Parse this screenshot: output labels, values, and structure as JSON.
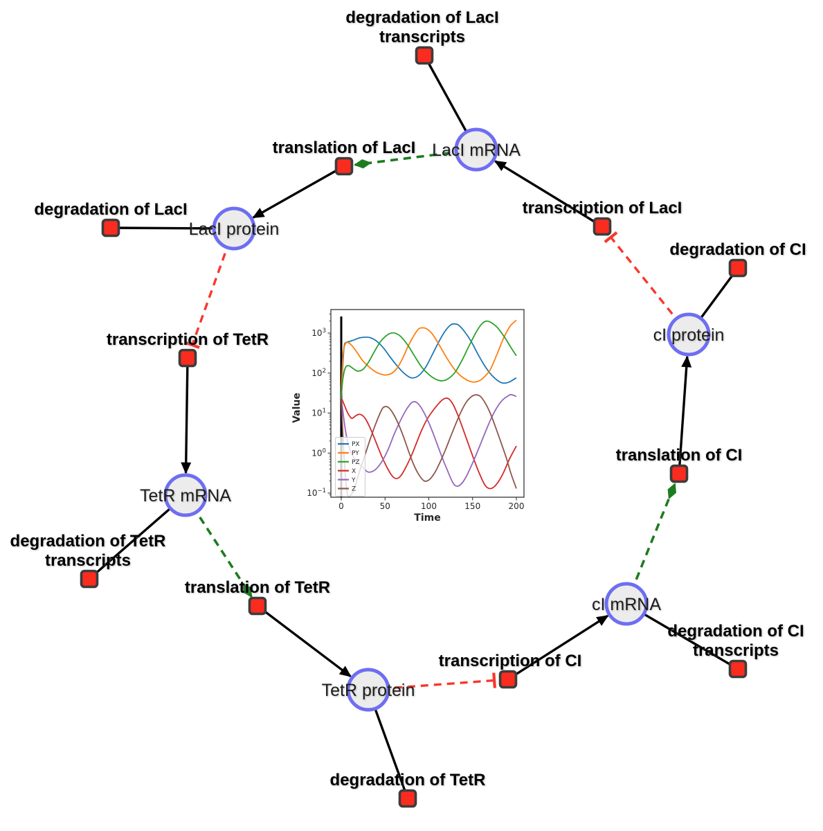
{
  "colors": {
    "activation": "#1d7c1f",
    "inhibition": "#f8372c",
    "node_fill": "#ececec",
    "node_border": "#6e6ef2",
    "reaction_fill": "#fa2b1f",
    "reaction_border": "#3c3c3c",
    "edge": "#000000"
  },
  "network": {
    "species": [
      {
        "id": "laci-mrna",
        "label": "LacI mRNA"
      },
      {
        "id": "laci-protein",
        "label": "LacI protein"
      },
      {
        "id": "tetr-mrna",
        "label": "TetR mRNA"
      },
      {
        "id": "tetr-protein",
        "label": "TetR protein"
      },
      {
        "id": "ci-mrna",
        "label": "cI mRNA"
      },
      {
        "id": "ci-protein",
        "label": "cI protein"
      }
    ],
    "reactions": [
      {
        "id": "degradation-laci-transcripts",
        "lines": [
          "degradation of LacI",
          "transcripts"
        ]
      },
      {
        "id": "translation-laci",
        "lines": [
          "translation of LacI"
        ]
      },
      {
        "id": "degradation-laci",
        "lines": [
          "degradation of LacI"
        ]
      },
      {
        "id": "transcription-laci",
        "lines": [
          "transcription of LacI"
        ]
      },
      {
        "id": "degradation-ci",
        "lines": [
          "degradation of CI"
        ]
      },
      {
        "id": "transcription-tetr",
        "lines": [
          "transcription of TetR"
        ]
      },
      {
        "id": "degradation-tetr-transcripts",
        "lines": [
          "degradation of TetR",
          "transcripts"
        ]
      },
      {
        "id": "translation-tetr",
        "lines": [
          "translation of TetR"
        ]
      },
      {
        "id": "degradation-tetr",
        "lines": [
          "degradation of TetR"
        ]
      },
      {
        "id": "transcription-ci",
        "lines": [
          "transcription of CI"
        ]
      },
      {
        "id": "degradation-ci-transcripts",
        "lines": [
          "degradation of CI",
          "transcripts"
        ]
      },
      {
        "id": "translation-ci",
        "lines": [
          "translation of CI"
        ]
      }
    ]
  },
  "chart_data": {
    "type": "line",
    "title": "",
    "xlabel": "Time",
    "ylabel": "Value",
    "xlim": [
      0,
      200
    ],
    "xticks": [
      0,
      50,
      100,
      150,
      200
    ],
    "yscale": "log",
    "ylim": [
      0.1,
      3800
    ],
    "yticks_decades": [
      -1,
      0,
      1,
      2,
      3
    ],
    "grid": false,
    "legend_position": "lower left",
    "vline_at_x": 0,
    "series": [
      {
        "name": "PX",
        "color": "#1f77b4",
        "points": [
          [
            0,
            25
          ],
          [
            3,
            400
          ],
          [
            6,
            580
          ],
          [
            10,
            620
          ],
          [
            15,
            680
          ],
          [
            21,
            760
          ],
          [
            27,
            790
          ],
          [
            33,
            770
          ],
          [
            40,
            640
          ],
          [
            48,
            430
          ],
          [
            56,
            250
          ],
          [
            64,
            150
          ],
          [
            72,
            98
          ],
          [
            80,
            76
          ],
          [
            88,
            85
          ],
          [
            96,
            135
          ],
          [
            104,
            290
          ],
          [
            112,
            640
          ],
          [
            119,
            1150
          ],
          [
            125,
            1600
          ],
          [
            129,
            1700
          ],
          [
            134,
            1580
          ],
          [
            140,
            1150
          ],
          [
            148,
            640
          ],
          [
            156,
            300
          ],
          [
            164,
            150
          ],
          [
            172,
            88
          ],
          [
            180,
            62
          ],
          [
            186,
            56
          ],
          [
            192,
            60
          ],
          [
            200,
            76
          ]
        ]
      },
      {
        "name": "PY",
        "color": "#ff7f0e",
        "points": [
          [
            0,
            25
          ],
          [
            2,
            280
          ],
          [
            5,
            560
          ],
          [
            8,
            575
          ],
          [
            12,
            490
          ],
          [
            18,
            330
          ],
          [
            24,
            210
          ],
          [
            30,
            155
          ],
          [
            36,
            120
          ],
          [
            42,
            100
          ],
          [
            48,
            91
          ],
          [
            52,
            90
          ],
          [
            58,
            100
          ],
          [
            64,
            135
          ],
          [
            70,
            230
          ],
          [
            76,
            450
          ],
          [
            82,
            800
          ],
          [
            88,
            1250
          ],
          [
            92,
            1350
          ],
          [
            97,
            1300
          ],
          [
            104,
            950
          ],
          [
            112,
            500
          ],
          [
            120,
            250
          ],
          [
            128,
            135
          ],
          [
            136,
            87
          ],
          [
            144,
            66
          ],
          [
            150,
            60
          ],
          [
            156,
            62
          ],
          [
            162,
            75
          ],
          [
            170,
            120
          ],
          [
            178,
            300
          ],
          [
            186,
            800
          ],
          [
            193,
            1500
          ],
          [
            200,
            2100
          ]
        ]
      },
      {
        "name": "PZ",
        "color": "#2ca02c",
        "points": [
          [
            0,
            25
          ],
          [
            2,
            75
          ],
          [
            5,
            140
          ],
          [
            9,
            152
          ],
          [
            14,
            128
          ],
          [
            19,
            112
          ],
          [
            25,
            125
          ],
          [
            31,
            185
          ],
          [
            38,
            350
          ],
          [
            45,
            620
          ],
          [
            52,
            880
          ],
          [
            57,
            1000
          ],
          [
            62,
            990
          ],
          [
            68,
            820
          ],
          [
            76,
            500
          ],
          [
            84,
            260
          ],
          [
            92,
            140
          ],
          [
            100,
            92
          ],
          [
            108,
            70
          ],
          [
            115,
            64
          ],
          [
            122,
            72
          ],
          [
            130,
            105
          ],
          [
            138,
            210
          ],
          [
            146,
            480
          ],
          [
            154,
            1050
          ],
          [
            160,
            1650
          ],
          [
            165,
            1980
          ],
          [
            170,
            1900
          ],
          [
            178,
            1400
          ],
          [
            186,
            820
          ],
          [
            194,
            430
          ],
          [
            200,
            270
          ]
        ]
      },
      {
        "name": "X",
        "color": "#d62728",
        "points": [
          [
            0,
            25
          ],
          [
            4,
            15
          ],
          [
            8,
            9.5
          ],
          [
            12,
            7.4
          ],
          [
            16,
            8.4
          ],
          [
            20,
            9.3
          ],
          [
            24,
            8.8
          ],
          [
            28,
            7
          ],
          [
            34,
            3.8
          ],
          [
            40,
            1.8
          ],
          [
            46,
            0.85
          ],
          [
            52,
            0.45
          ],
          [
            58,
            0.27
          ],
          [
            63,
            0.23
          ],
          [
            68,
            0.27
          ],
          [
            74,
            0.45
          ],
          [
            80,
            0.85
          ],
          [
            86,
            1.8
          ],
          [
            92,
            3.8
          ],
          [
            98,
            7
          ],
          [
            104,
            11
          ],
          [
            110,
            16
          ],
          [
            115,
            21
          ],
          [
            119,
            23.5
          ],
          [
            123,
            22.5
          ],
          [
            128,
            16
          ],
          [
            134,
            8
          ],
          [
            140,
            3.5
          ],
          [
            146,
            1.5
          ],
          [
            152,
            0.65
          ],
          [
            158,
            0.3
          ],
          [
            164,
            0.16
          ],
          [
            169,
            0.13
          ],
          [
            174,
            0.14
          ],
          [
            180,
            0.2
          ],
          [
            186,
            0.35
          ],
          [
            192,
            0.7
          ],
          [
            200,
            1.5
          ]
        ]
      },
      {
        "name": "Y",
        "color": "#9467bd",
        "points": [
          [
            0,
            25
          ],
          [
            3,
            7
          ],
          [
            6,
            2.6
          ],
          [
            10,
            1.2
          ],
          [
            14,
            0.8
          ],
          [
            18,
            0.62
          ],
          [
            24,
            0.45
          ],
          [
            30,
            0.34
          ],
          [
            36,
            0.35
          ],
          [
            42,
            0.45
          ],
          [
            48,
            0.7
          ],
          [
            54,
            1.3
          ],
          [
            60,
            2.8
          ],
          [
            66,
            5.5
          ],
          [
            72,
            10
          ],
          [
            78,
            16
          ],
          [
            82,
            19
          ],
          [
            86,
            18.5
          ],
          [
            91,
            14
          ],
          [
            97,
            8
          ],
          [
            103,
            4
          ],
          [
            109,
            1.8
          ],
          [
            115,
            0.8
          ],
          [
            121,
            0.38
          ],
          [
            127,
            0.19
          ],
          [
            131,
            0.15
          ],
          [
            136,
            0.16
          ],
          [
            142,
            0.24
          ],
          [
            148,
            0.45
          ],
          [
            154,
            0.9
          ],
          [
            160,
            1.9
          ],
          [
            166,
            4
          ],
          [
            172,
            8
          ],
          [
            178,
            14
          ],
          [
            184,
            21
          ],
          [
            190,
            26.5
          ],
          [
            194,
            29
          ],
          [
            200,
            26
          ]
        ]
      },
      {
        "name": "Z",
        "color": "#8c564b",
        "points": [
          [
            0,
            25
          ],
          [
            2,
            2.5
          ],
          [
            4,
            0.45
          ],
          [
            6,
            0.13
          ],
          [
            8,
            0.085
          ],
          [
            11,
            0.09
          ],
          [
            15,
            0.13
          ],
          [
            20,
            0.3
          ],
          [
            26,
            0.75
          ],
          [
            32,
            1.9
          ],
          [
            38,
            4.5
          ],
          [
            43,
            8.5
          ],
          [
            47,
            13
          ],
          [
            50,
            14.5
          ],
          [
            54,
            13.8
          ],
          [
            59,
            10
          ],
          [
            65,
            5.5
          ],
          [
            71,
            2.6
          ],
          [
            77,
            1.1
          ],
          [
            83,
            0.5
          ],
          [
            89,
            0.28
          ],
          [
            95,
            0.2
          ],
          [
            101,
            0.22
          ],
          [
            107,
            0.33
          ],
          [
            113,
            0.6
          ],
          [
            119,
            1.2
          ],
          [
            125,
            2.6
          ],
          [
            131,
            5.5
          ],
          [
            137,
            11
          ],
          [
            143,
            19
          ],
          [
            149,
            26
          ],
          [
            154,
            28.5
          ],
          [
            159,
            26
          ],
          [
            165,
            17
          ],
          [
            171,
            9
          ],
          [
            177,
            4
          ],
          [
            183,
            1.7
          ],
          [
            189,
            0.7
          ],
          [
            194,
            0.3
          ],
          [
            200,
            0.13
          ]
        ]
      }
    ]
  }
}
